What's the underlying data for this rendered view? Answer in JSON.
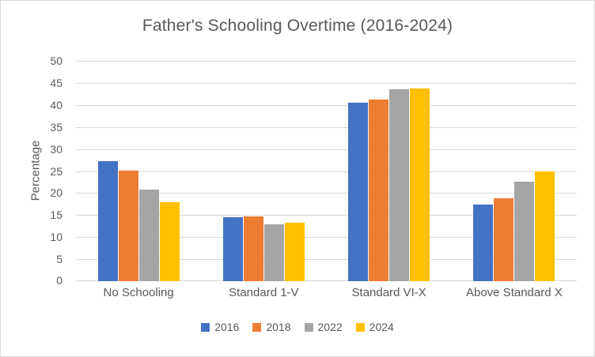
{
  "chart_data": {
    "type": "bar",
    "title": "Father's Schooling Overtime (2016-2024)",
    "xlabel": "",
    "ylabel": "Percentage",
    "ylim": [
      0,
      50
    ],
    "ytick_step": 5,
    "grid": true,
    "legend_position": "bottom",
    "categories": [
      "No Schooling",
      "Standard 1-V",
      "Standard VI-X",
      "Above Standard X"
    ],
    "series": [
      {
        "name": "2016",
        "color": "#4472C4",
        "values": [
          27.2,
          14.6,
          40.5,
          17.4
        ]
      },
      {
        "name": "2018",
        "color": "#ED7D31",
        "values": [
          25.0,
          14.7,
          41.3,
          18.9
        ]
      },
      {
        "name": "2022",
        "color": "#A5A5A5",
        "values": [
          20.7,
          12.9,
          43.5,
          22.5
        ]
      },
      {
        "name": "2024",
        "color": "#FFC000",
        "values": [
          18.0,
          13.3,
          43.8,
          24.9
        ]
      }
    ],
    "colors": {
      "text": "#595959",
      "grid": "#D9D9D9",
      "border": "#D7D7D7",
      "background": "#FFFFFF"
    }
  }
}
